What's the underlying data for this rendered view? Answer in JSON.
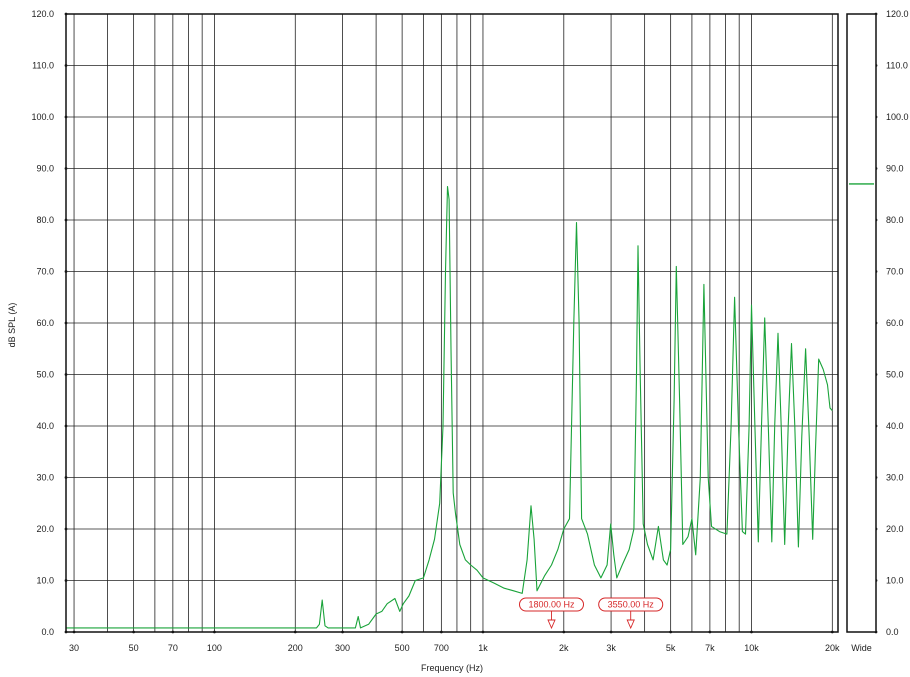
{
  "chart_data": {
    "type": "line",
    "title": "",
    "xlabel": "Frequency (Hz)",
    "ylabel": "dB SPL (A)",
    "x_scale": "log",
    "xlim": [
      28,
      21000
    ],
    "ylim": [
      0,
      120
    ],
    "grid": true,
    "x_ticks": [
      {
        "v": 30,
        "label": "30"
      },
      {
        "v": 50,
        "label": "50"
      },
      {
        "v": 70,
        "label": "70"
      },
      {
        "v": 100,
        "label": "100"
      },
      {
        "v": 200,
        "label": "200"
      },
      {
        "v": 300,
        "label": "300"
      },
      {
        "v": 500,
        "label": "500"
      },
      {
        "v": 700,
        "label": "700"
      },
      {
        "v": 1000,
        "label": "1k"
      },
      {
        "v": 2000,
        "label": "2k"
      },
      {
        "v": 3000,
        "label": "3k"
      },
      {
        "v": 5000,
        "label": "5k"
      },
      {
        "v": 7000,
        "label": "7k"
      },
      {
        "v": 10000,
        "label": "10k"
      },
      {
        "v": 20000,
        "label": "20k"
      }
    ],
    "x_minor_grid": [
      40,
      60,
      80,
      90,
      400,
      600,
      800,
      900,
      4000,
      6000,
      8000,
      9000
    ],
    "y_ticks": [
      "0.0",
      "10.0",
      "20.0",
      "30.0",
      "40.0",
      "50.0",
      "60.0",
      "70.0",
      "80.0",
      "90.0",
      "100.0",
      "110.0",
      "120.0"
    ],
    "series": [
      {
        "color": "#1aa33a",
        "points": [
          [
            28,
            0.8
          ],
          [
            240,
            0.8
          ],
          [
            246,
            1.5
          ],
          [
            252,
            6.2
          ],
          [
            258,
            1.2
          ],
          [
            265,
            0.8
          ],
          [
            335,
            0.8
          ],
          [
            343,
            3.0
          ],
          [
            350,
            0.8
          ],
          [
            375,
            1.5
          ],
          [
            400,
            3.5
          ],
          [
            420,
            4.0
          ],
          [
            440,
            5.5
          ],
          [
            470,
            6.5
          ],
          [
            490,
            4.0
          ],
          [
            505,
            5.5
          ],
          [
            530,
            7.0
          ],
          [
            560,
            10.0
          ],
          [
            600,
            10.5
          ],
          [
            630,
            14.0
          ],
          [
            660,
            18.0
          ],
          [
            690,
            25.0
          ],
          [
            710,
            40.0
          ],
          [
            725,
            70.0
          ],
          [
            738,
            86.5
          ],
          [
            748,
            84.0
          ],
          [
            760,
            55.0
          ],
          [
            775,
            27.0
          ],
          [
            790,
            23.0
          ],
          [
            820,
            17.0
          ],
          [
            860,
            14.0
          ],
          [
            900,
            13.0
          ],
          [
            950,
            12.0
          ],
          [
            1000,
            10.5
          ],
          [
            1100,
            9.5
          ],
          [
            1200,
            8.5
          ],
          [
            1300,
            8.0
          ],
          [
            1400,
            7.5
          ],
          [
            1460,
            14.0
          ],
          [
            1510,
            24.5
          ],
          [
            1550,
            18.0
          ],
          [
            1590,
            8.0
          ],
          [
            1700,
            11.0
          ],
          [
            1800,
            13.0
          ],
          [
            1900,
            16.0
          ],
          [
            2000,
            20.0
          ],
          [
            2100,
            22.0
          ],
          [
            2180,
            60.0
          ],
          [
            2230,
            79.5
          ],
          [
            2280,
            60.0
          ],
          [
            2330,
            22.0
          ],
          [
            2450,
            19.0
          ],
          [
            2600,
            13.0
          ],
          [
            2750,
            10.5
          ],
          [
            2900,
            13.0
          ],
          [
            2990,
            21.0
          ],
          [
            3070,
            15.0
          ],
          [
            3150,
            10.5
          ],
          [
            3300,
            13.0
          ],
          [
            3500,
            16.0
          ],
          [
            3650,
            20.0
          ],
          [
            3730,
            50.0
          ],
          [
            3780,
            75.0
          ],
          [
            3850,
            50.0
          ],
          [
            3950,
            21.0
          ],
          [
            4100,
            17.0
          ],
          [
            4300,
            14.0
          ],
          [
            4500,
            20.5
          ],
          [
            4700,
            14.0
          ],
          [
            4850,
            13.0
          ],
          [
            5000,
            16.0
          ],
          [
            5150,
            45.0
          ],
          [
            5250,
            71.0
          ],
          [
            5400,
            45.0
          ],
          [
            5550,
            17.0
          ],
          [
            5800,
            18.5
          ],
          [
            6000,
            22.0
          ],
          [
            6200,
            15.0
          ],
          [
            6450,
            30.0
          ],
          [
            6650,
            67.5
          ],
          [
            6900,
            30.0
          ],
          [
            7100,
            20.5
          ],
          [
            7600,
            19.5
          ],
          [
            8100,
            19.0
          ],
          [
            8400,
            40.0
          ],
          [
            8650,
            65.0
          ],
          [
            8950,
            40.0
          ],
          [
            9250,
            19.5
          ],
          [
            9500,
            19.0
          ],
          [
            9800,
            40.0
          ],
          [
            10000,
            63.5
          ],
          [
            10300,
            40.0
          ],
          [
            10600,
            17.5
          ],
          [
            10900,
            40.0
          ],
          [
            11200,
            61.0
          ],
          [
            11550,
            40.0
          ],
          [
            11900,
            17.5
          ],
          [
            12200,
            40.0
          ],
          [
            12550,
            58.0
          ],
          [
            12900,
            40.0
          ],
          [
            13300,
            17.0
          ],
          [
            13700,
            40.0
          ],
          [
            14100,
            56.0
          ],
          [
            14500,
            40.0
          ],
          [
            14950,
            16.5
          ],
          [
            15400,
            38.0
          ],
          [
            15900,
            55.0
          ],
          [
            16400,
            38.0
          ],
          [
            16900,
            18.0
          ],
          [
            17300,
            35.0
          ],
          [
            17800,
            53.0
          ],
          [
            18500,
            51.0
          ],
          [
            19200,
            48.0
          ],
          [
            19600,
            43.5
          ],
          [
            20000,
            43.0
          ]
        ]
      }
    ],
    "markers": [
      {
        "x": 1800,
        "label": "1800.00 Hz"
      },
      {
        "x": 3550,
        "label": "3550.00 Hz"
      }
    ],
    "legend": {
      "label": "Wide",
      "color": "#1aa33a",
      "y": 87
    }
  }
}
